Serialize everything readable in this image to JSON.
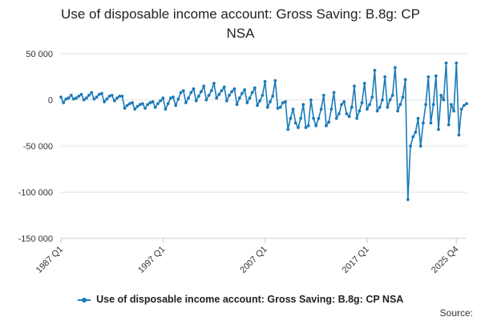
{
  "chart_data": {
    "type": "line",
    "title_line1": "Use of disposable income account: Gross Saving: B.8g: CP",
    "title_line2": "NSA",
    "xlabel": "",
    "ylabel": "",
    "ylim": [
      -150000,
      50000
    ],
    "yticks": [
      50000,
      0,
      -50000,
      -100000,
      -150000
    ],
    "ytick_labels": [
      "50 000",
      "0",
      "-50 000",
      "-100 000",
      "-150 000"
    ],
    "xtick_labels": [
      "1987 Q1",
      "1997 Q1",
      "2007 Q1",
      "2017 Q1",
      "2025 Q4"
    ],
    "xtick_index": [
      0,
      40,
      80,
      120,
      155
    ],
    "grid": true,
    "legend": "bottom",
    "color": "#1a7ab8",
    "series": [
      {
        "name": "Use of disposable income account: Gross Saving: B.8g: CP NSA",
        "start": "1987 Q1",
        "end": "2025 Q4",
        "values": [
          3000,
          -3000,
          1000,
          2000,
          5000,
          1000,
          2000,
          4000,
          6000,
          0,
          2000,
          5000,
          8000,
          1000,
          3000,
          6000,
          7000,
          -2000,
          1000,
          4000,
          5000,
          -1000,
          2000,
          4000,
          4000,
          -9000,
          -6000,
          -4000,
          -3000,
          -10000,
          -7000,
          -5000,
          -4000,
          -9000,
          -5000,
          -3000,
          -2000,
          -8000,
          -4000,
          -1000,
          2000,
          -10000,
          -4000,
          2000,
          3000,
          -6000,
          1000,
          8000,
          10000,
          -3000,
          2000,
          8000,
          12000,
          -1000,
          4000,
          9000,
          15000,
          0,
          5000,
          10000,
          18000,
          2000,
          6000,
          10000,
          14000,
          -1000,
          5000,
          9000,
          12000,
          -5000,
          2000,
          7000,
          11000,
          -3000,
          2000,
          8000,
          13000,
          -6000,
          -1000,
          5000,
          20000,
          -8000,
          -2000,
          4000,
          21000,
          -9000,
          -8000,
          -3000,
          -2000,
          -32000,
          -20000,
          -10000,
          -25000,
          -30000,
          -20000,
          -5000,
          -30000,
          -28000,
          0,
          -20000,
          -28000,
          -20000,
          -10000,
          5000,
          -28000,
          -24000,
          -10000,
          8000,
          -20000,
          -15000,
          -5000,
          -2000,
          -15000,
          -18000,
          -8000,
          15000,
          -20000,
          -12000,
          -3000,
          18000,
          -10000,
          -5000,
          3000,
          32000,
          -12000,
          -8000,
          0,
          25000,
          -8000,
          0,
          5000,
          35000,
          -12000,
          -5000,
          3000,
          22000,
          -108000,
          -50000,
          -40000,
          -35000,
          -20000,
          -50000,
          -25000,
          -5000,
          25000,
          -25000,
          -5000,
          26000,
          -32000,
          5000,
          0,
          40000,
          -27000,
          -5000,
          -12000,
          40000,
          -38000,
          -10000,
          -6000,
          -4000
        ]
      }
    ]
  },
  "legend": {
    "label": "Use of disposable income account: Gross Saving: B.8g: CP NSA"
  },
  "source_label": "Source:"
}
